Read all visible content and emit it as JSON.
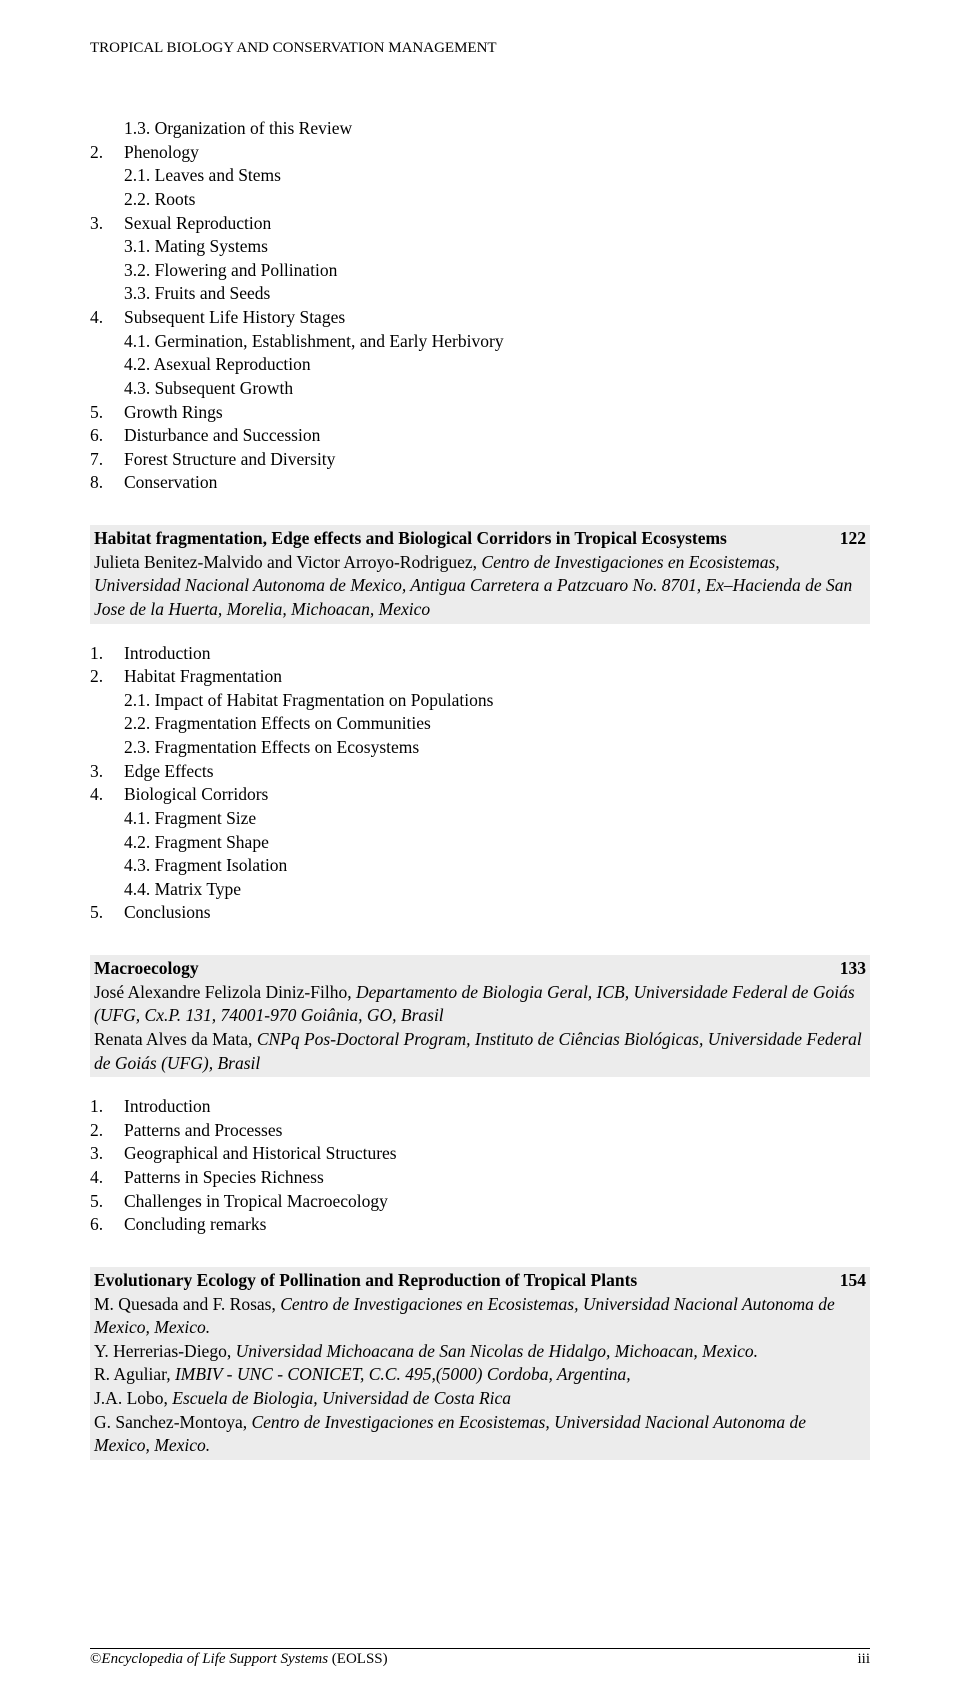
{
  "header": "TROPICAL BIOLOGY AND CONSERVATION MANAGEMENT",
  "toc0": [
    {
      "n": "",
      "t": "1.3. Organization of this Review",
      "ind": 1
    },
    {
      "n": "2.",
      "t": "Phenology",
      "ind": 0
    },
    {
      "n": "",
      "t": "2.1. Leaves and Stems",
      "ind": 1
    },
    {
      "n": "",
      "t": "2.2. Roots",
      "ind": 1
    },
    {
      "n": "3.",
      "t": "Sexual Reproduction",
      "ind": 0
    },
    {
      "n": "",
      "t": "3.1. Mating Systems",
      "ind": 1
    },
    {
      "n": "",
      "t": "3.2. Flowering and Pollination",
      "ind": 1
    },
    {
      "n": "",
      "t": "3.3. Fruits and Seeds",
      "ind": 1
    },
    {
      "n": "4.",
      "t": "Subsequent Life History Stages",
      "ind": 0
    },
    {
      "n": "",
      "t": "4.1. Germination, Establishment, and Early Herbivory",
      "ind": 1
    },
    {
      "n": "",
      "t": "4.2. Asexual Reproduction",
      "ind": 1
    },
    {
      "n": "",
      "t": "4.3. Subsequent Growth",
      "ind": 1
    },
    {
      "n": "5.",
      "t": "Growth Rings",
      "ind": 0
    },
    {
      "n": "6.",
      "t": "Disturbance and Succession",
      "ind": 0
    },
    {
      "n": "7.",
      "t": "Forest Structure and Diversity",
      "ind": 0
    },
    {
      "n": "8.",
      "t": "Conservation",
      "ind": 0
    }
  ],
  "sec1": {
    "title": "Habitat fragmentation, Edge effects and Biological Corridors in Tropical Ecosystems",
    "page": "122",
    "authors_prefix": "Julieta Benitez-Malvido and Victor Arroyo-Rodriguez, ",
    "authors_italic": "Centro de Investigaciones en Ecosistemas, Universidad Nacional Autonoma de Mexico, Antigua Carretera a Patzcuaro No. 8701, Ex–Hacienda de San Jose de la Huerta, Morelia, Michoacan, Mexico"
  },
  "toc1": [
    {
      "n": "1.",
      "t": "Introduction",
      "ind": 0
    },
    {
      "n": "2.",
      "t": "Habitat Fragmentation",
      "ind": 0
    },
    {
      "n": "",
      "t": "2.1. Impact of Habitat Fragmentation on Populations",
      "ind": 1
    },
    {
      "n": "",
      "t": "2.2. Fragmentation Effects on Communities",
      "ind": 1
    },
    {
      "n": "",
      "t": "2.3. Fragmentation Effects on Ecosystems",
      "ind": 1
    },
    {
      "n": "3.",
      "t": "Edge Effects",
      "ind": 0
    },
    {
      "n": "4.",
      "t": "Biological Corridors",
      "ind": 0
    },
    {
      "n": "",
      "t": "4.1. Fragment Size",
      "ind": 1
    },
    {
      "n": "",
      "t": "4.2. Fragment Shape",
      "ind": 1
    },
    {
      "n": "",
      "t": "4.3. Fragment Isolation",
      "ind": 1
    },
    {
      "n": "",
      "t": "4.4. Matrix Type",
      "ind": 1
    },
    {
      "n": "5.",
      "t": "Conclusions",
      "ind": 0
    }
  ],
  "sec2": {
    "title": "Macroecology",
    "page": "133",
    "line1_prefix": "José Alexandre Felizola Diniz-Filho, ",
    "line1_italic": "Departamento de Biologia Geral, ICB, Universidade Federal de Goiás (UFG, Cx.P. 131, 74001-970 Goiânia, GO, Brasil",
    "line2_prefix": "Renata Alves da Mata, ",
    "line2_italic": "CNPq Pos-Doctoral Program, Instituto de Ciências Biológicas, Universidade Federal de Goiás (UFG), Brasil"
  },
  "toc2": [
    {
      "n": "1.",
      "t": "Introduction",
      "ind": 0
    },
    {
      "n": "2.",
      "t": "Patterns and Processes",
      "ind": 0
    },
    {
      "n": "3.",
      "t": "Geographical and Historical Structures",
      "ind": 0
    },
    {
      "n": "4.",
      "t": "Patterns in Species Richness",
      "ind": 0
    },
    {
      "n": "5.",
      "t": "Challenges in Tropical Macroecology",
      "ind": 0
    },
    {
      "n": "6.",
      "t": "Concluding remarks",
      "ind": 0
    }
  ],
  "sec3": {
    "title": "Evolutionary Ecology of Pollination and Reproduction of Tropical Plants",
    "page": "154",
    "a1_prefix": "M. Quesada and F. Rosas, ",
    "a1_italic": "Centro de Investigaciones en Ecosistemas, Universidad Nacional Autonoma de Mexico, Mexico.",
    "a2_prefix": "Y. Herrerias-Diego, ",
    "a2_italic": "Universidad Michoacana de San Nicolas de Hidalgo, Michoacan, Mexico.",
    "a3_prefix": "R. Aguliar, ",
    "a3_italic": "IMBIV - UNC - CONICET, C.C. 495,(5000) Cordoba, Argentina,",
    "a4_prefix": "J.A. Lobo, ",
    "a4_italic": "Escuela de Biologia, Universidad de Costa Rica",
    "a5_prefix": "G. Sanchez-Montoya, ",
    "a5_italic": "Centro de Investigaciones en Ecosistemas, Universidad Nacional Autonoma de Mexico, Mexico."
  },
  "footer": {
    "left_prefix": "©",
    "left_italic": "Encyclopedia of Life Support Systems ",
    "left_suffix": "(EOLSS)",
    "right": "iii"
  }
}
